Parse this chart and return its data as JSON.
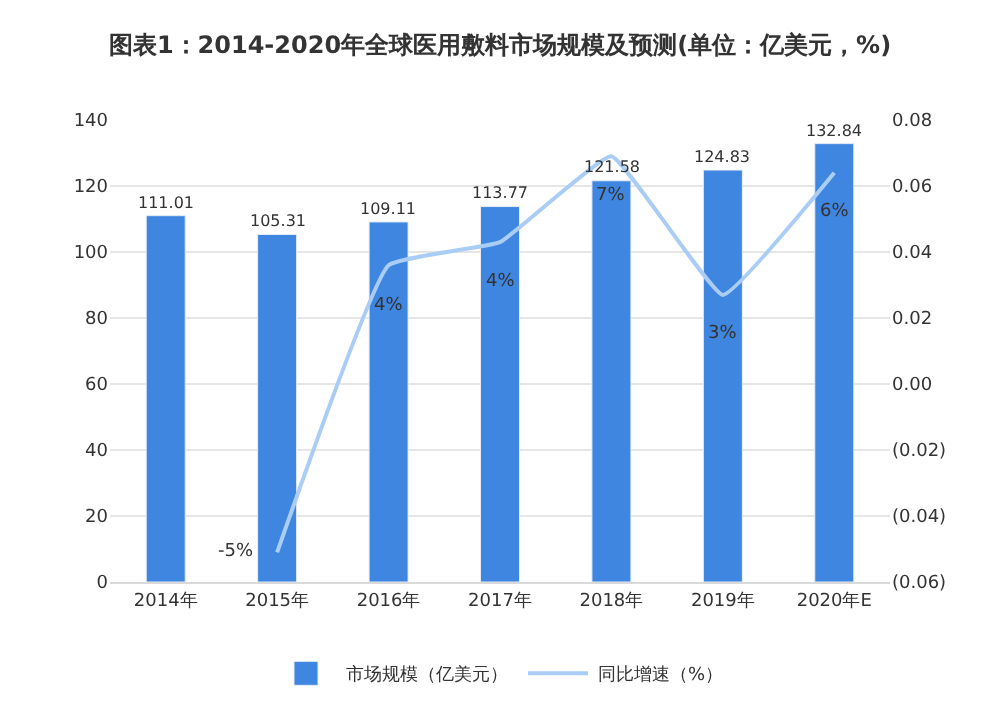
{
  "chart_data": {
    "type": "bar",
    "title": "图表1：2014-2020年全球医用敷料市场规模及预测(单位：亿美元，%)",
    "categories": [
      "2014年",
      "2015年",
      "2016年",
      "2017年",
      "2018年",
      "2019年",
      "2020年E"
    ],
    "series": [
      {
        "name": "市场规模（亿美元）",
        "color": "#3f86e0",
        "values": [
          111.01,
          105.31,
          109.11,
          113.77,
          121.58,
          124.83,
          132.84
        ],
        "value_labels": [
          "111.01",
          "105.31",
          "109.11",
          "113.77",
          "121.58",
          "124.83",
          "132.84"
        ]
      },
      {
        "name": "同比增速（%）",
        "type": "line",
        "axis": "y2",
        "color": "#aacdf5",
        "values": [
          null,
          -0.051,
          0.036,
          0.043,
          0.069,
          0.027,
          0.064
        ],
        "value_labels": [
          null,
          "-5%",
          "4%",
          "4%",
          "7%",
          "3%",
          "6%"
        ]
      }
    ],
    "ylim": [
      0,
      140
    ],
    "yticks": [
      0,
      20,
      40,
      60,
      80,
      100,
      120,
      140
    ],
    "y2lim": [
      -0.06,
      0.08
    ],
    "y2ticks": [
      {
        "value": -0.06,
        "label": "(0.06)"
      },
      {
        "value": -0.04,
        "label": "(0.04)"
      },
      {
        "value": -0.02,
        "label": "(0.02)"
      },
      {
        "value": 0,
        "label": "0.00"
      },
      {
        "value": 0.02,
        "label": "0.02"
      },
      {
        "value": 0.04,
        "label": "0.04"
      },
      {
        "value": 0.06,
        "label": "0.06"
      },
      {
        "value": 0.08,
        "label": "0.08"
      }
    ],
    "grid": "y",
    "legend": "bottom",
    "marker": "none",
    "line_style": "solid"
  }
}
